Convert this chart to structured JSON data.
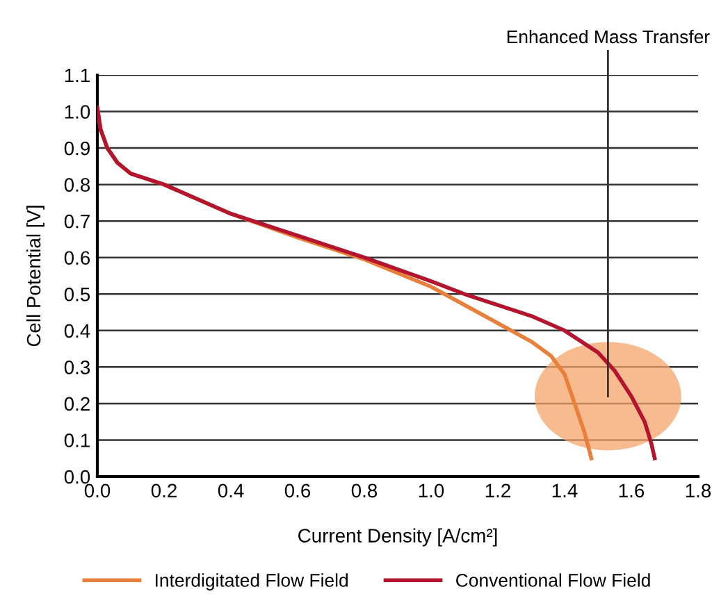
{
  "chart_data": {
    "type": "line",
    "xlabel": "Current Density [A/cm²]",
    "ylabel": "Cell Potential [V]",
    "xlim": [
      0,
      1.8
    ],
    "ylim": [
      0,
      1.1
    ],
    "xticks": [
      {
        "value": 0,
        "label": "0.0"
      },
      0.2,
      0.4,
      0.6,
      0.8,
      {
        "value": 1,
        "label": "1.0"
      },
      1.2,
      1.4,
      1.6,
      1.8
    ],
    "yticks": [
      {
        "value": 0,
        "label": "0.0"
      },
      0.1,
      0.2,
      0.3,
      0.4,
      0.5,
      0.6,
      0.7,
      0.8,
      0.9,
      {
        "value": 1,
        "label": "1.0"
      },
      1.1
    ],
    "grid": "y",
    "legend": "bottom",
    "marker": "none",
    "line_style": "solid",
    "series": [
      {
        "name": "Interdigitated Flow Field",
        "color": "#e8803c",
        "x": [
          0,
          0.01,
          0.03,
          0.06,
          0.1,
          0.2,
          0.4,
          0.6,
          0.8,
          1.0,
          1.1,
          1.2,
          1.3,
          1.36,
          1.4,
          1.43,
          1.46,
          1.48
        ],
        "values": [
          1.01,
          0.95,
          0.9,
          0.86,
          0.83,
          0.8,
          0.72,
          0.655,
          0.595,
          0.52,
          0.47,
          0.42,
          0.37,
          0.33,
          0.28,
          0.2,
          0.12,
          0.05
        ]
      },
      {
        "name": "Conventional Flow Field",
        "color": "#b5142e",
        "x": [
          0,
          0.01,
          0.03,
          0.06,
          0.1,
          0.2,
          0.4,
          0.6,
          0.8,
          1.0,
          1.1,
          1.2,
          1.3,
          1.4,
          1.5,
          1.55,
          1.6,
          1.64,
          1.66,
          1.67
        ],
        "values": [
          1.01,
          0.95,
          0.9,
          0.86,
          0.83,
          0.8,
          0.72,
          0.66,
          0.6,
          0.535,
          0.5,
          0.47,
          0.44,
          0.4,
          0.34,
          0.29,
          0.22,
          0.15,
          0.09,
          0.05
        ]
      }
    ],
    "ref_lines": [
      {
        "axis": "x",
        "value": 1.53,
        "label": "Enhanced Mass Transfer",
        "color": "#333333",
        "line_style": "solid"
      }
    ]
  }
}
